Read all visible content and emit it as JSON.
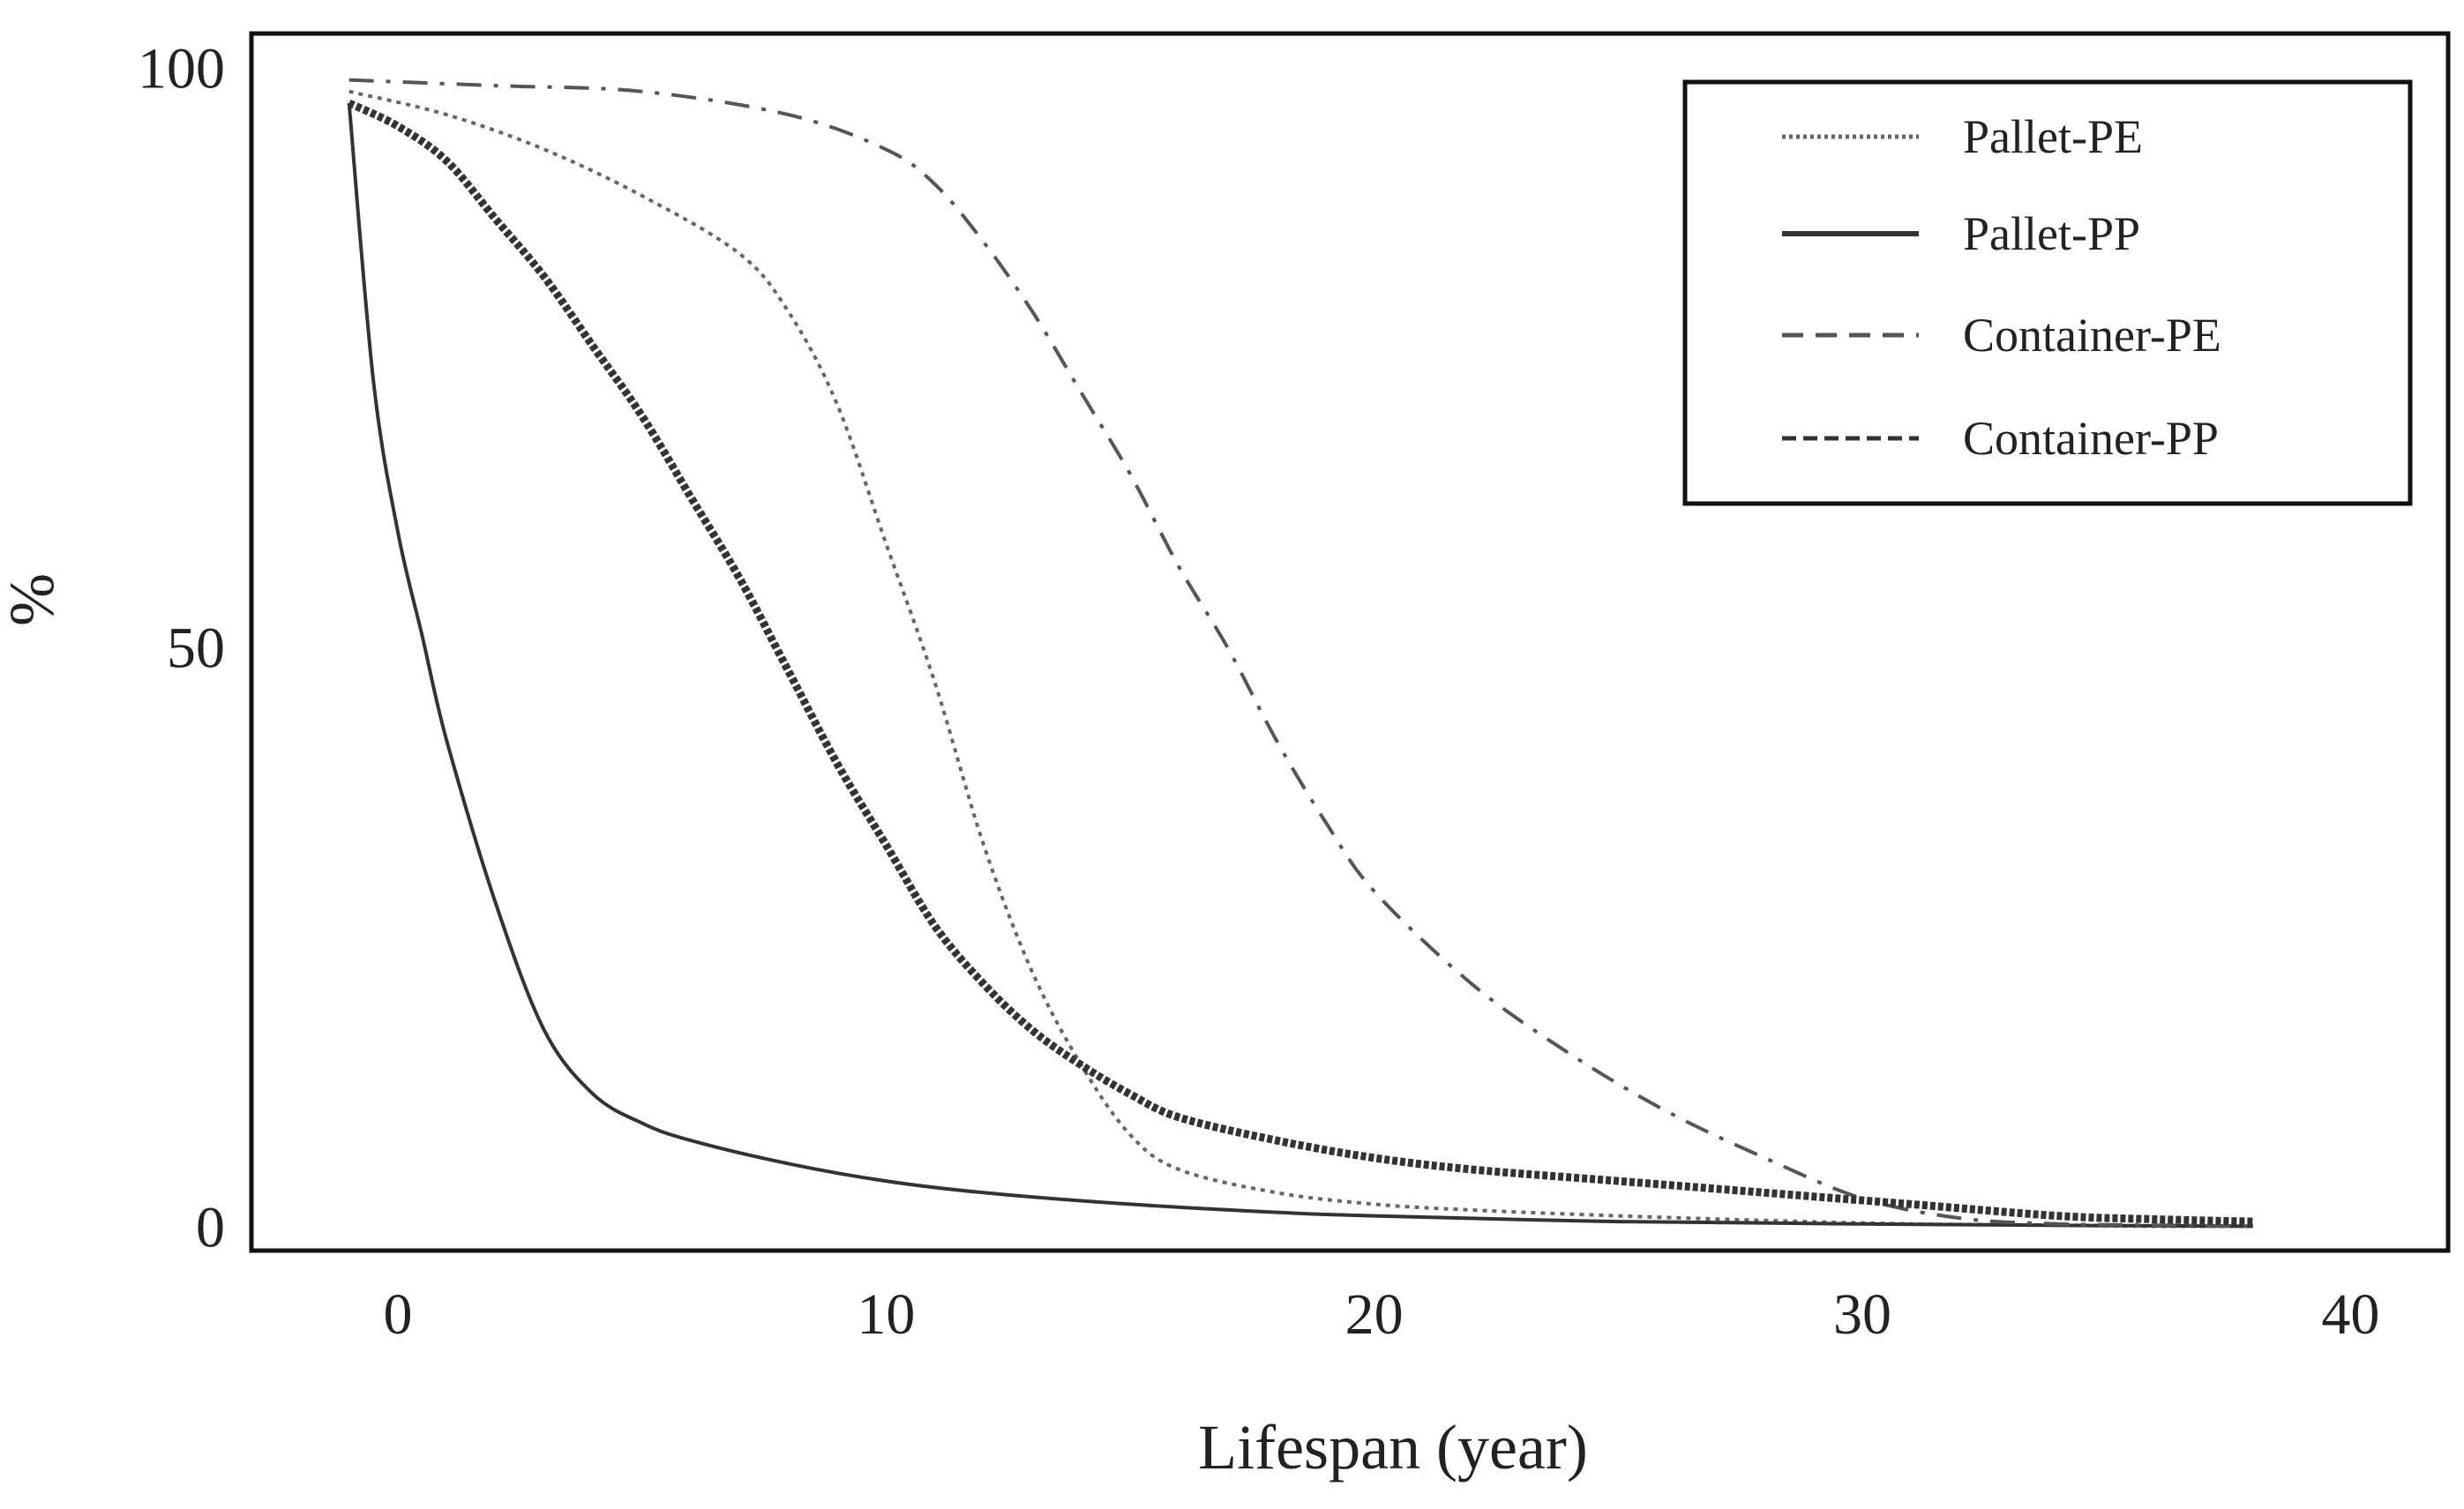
{
  "chart_data": {
    "type": "line",
    "title": "",
    "xlabel": "Lifespan (year)",
    "ylabel": "%",
    "xlim": [
      -3,
      42
    ],
    "ylim": [
      -2,
      103
    ],
    "xticks": [
      0,
      10,
      20,
      30,
      40
    ],
    "yticks": [
      0,
      50,
      100
    ],
    "x_tick_labels": [
      "0",
      "10",
      "20",
      "30",
      "40"
    ],
    "y_tick_labels": [
      "0",
      "50",
      "100"
    ],
    "grid": false,
    "legend_position": "top-right",
    "series": [
      {
        "name": "Pallet-PE",
        "style": "dotted",
        "color": "#666666",
        "x": [
          -1,
          1,
          3,
          5,
          7,
          8,
          9,
          10,
          11,
          12,
          13,
          14,
          15,
          16,
          18,
          20,
          22,
          25,
          28,
          31,
          34,
          36,
          38
        ],
        "y": [
          98,
          96,
          93,
          89,
          84,
          79,
          71,
          59,
          47,
          33,
          22,
          14,
          8,
          5,
          3,
          2,
          1.5,
          1,
          0.6,
          0.3,
          0.2,
          0.1,
          0.1
        ]
      },
      {
        "name": "Pallet-PP",
        "style": "solid",
        "color": "#333333",
        "x": [
          -1,
          -0.5,
          0,
          0.5,
          1,
          2,
          3,
          4,
          5,
          6,
          8,
          10,
          12,
          15,
          18,
          20,
          25,
          30,
          35,
          38
        ],
        "y": [
          97,
          73,
          60,
          51,
          42,
          28,
          17,
          11.5,
          9,
          7.5,
          5.5,
          4,
          3,
          2,
          1.3,
          1,
          0.5,
          0.3,
          0.15,
          0.1
        ]
      },
      {
        "name": "Container-PE",
        "style": "dashdot",
        "color": "#555555",
        "x": [
          -1,
          2,
          5,
          8,
          10,
          11,
          12,
          13,
          14,
          15,
          16,
          17,
          18,
          19,
          20,
          22,
          24,
          26,
          28,
          30,
          32,
          34,
          36,
          38
        ],
        "y": [
          99,
          98.5,
          98,
          96,
          93,
          90,
          85,
          79,
          72,
          65,
          57,
          50,
          42,
          35,
          29,
          21,
          15,
          10,
          6,
          2.5,
          0.8,
          0.3,
          0.2,
          0.1
        ]
      },
      {
        "name": "Container-PP",
        "style": "dense-dotted",
        "color": "#333333",
        "x": [
          -1,
          0,
          1,
          2,
          3,
          4,
          5,
          6,
          7,
          8,
          9,
          10,
          11,
          12,
          13,
          14,
          15,
          16,
          18,
          20,
          22,
          25,
          28,
          31,
          34,
          36,
          38
        ],
        "y": [
          97,
          95,
          92,
          87,
          82,
          76,
          70,
          63,
          56,
          48,
          40,
          33,
          26,
          21,
          17,
          14,
          11.5,
          9.5,
          7.5,
          6,
          5,
          4,
          3,
          2,
          1,
          0.7,
          0.5
        ]
      }
    ]
  }
}
